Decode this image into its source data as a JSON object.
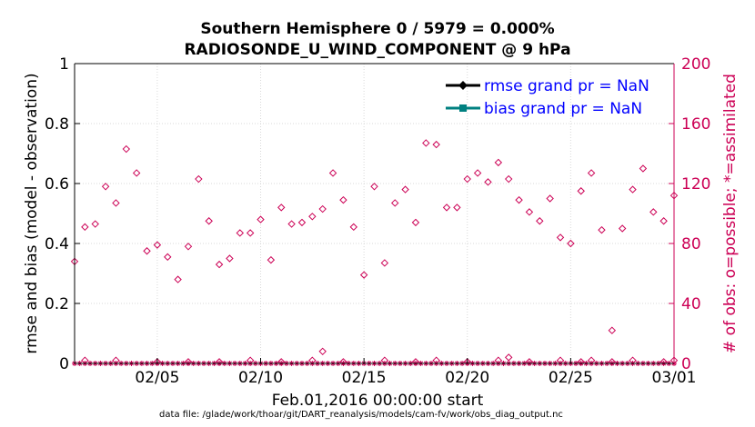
{
  "chart_data": {
    "type": "scatter",
    "title": "Southern Hemisphere 0 / 5979 = 0.000%",
    "subtitle": "RADIOSONDE_U_WIND_COMPONENT @ 9 hPa",
    "xlabel": "Feb.01,2016 00:00:00 start",
    "ylabel_left": "rmse and bias (model - observation)",
    "ylabel_right": "# of obs: o=possible; *=assimilated",
    "footer": "data file: /glade/work/thoar/git/DART_reanalysis/models/cam-fv/work/obs_diag_output.nc",
    "xlim": [
      1,
      30
    ],
    "ylim_left": [
      0,
      1
    ],
    "ylim_right": [
      0,
      200
    ],
    "x_tick_values": [
      5,
      10,
      15,
      20,
      25,
      30
    ],
    "x_tick_labels": [
      "02/05",
      "02/10",
      "02/15",
      "02/20",
      "02/25",
      "03/01"
    ],
    "y_left_ticks": [
      "0",
      "0.2",
      "0.4",
      "0.6",
      "0.8",
      "1"
    ],
    "y_right_ticks": [
      "0",
      "40",
      "80",
      "120",
      "160",
      "200"
    ],
    "grid": true,
    "legend_position": "top-right",
    "colors": {
      "rmse": "#000000",
      "bias": "#008080",
      "obs": "#cc0055",
      "legend_text": "#0000ff",
      "grid": "#d9d9d9"
    },
    "series": [
      {
        "name": "rmse grand pr = NaN",
        "marker": "diamond-filled",
        "color": "#000000",
        "values": []
      },
      {
        "name": "bias grand pr = NaN",
        "marker": "square-filled",
        "color": "#008080",
        "values": []
      }
    ],
    "obs_possible": {
      "x": [
        1,
        1.5,
        2,
        2.5,
        3,
        3.5,
        4,
        4.5,
        5,
        5.5,
        6,
        6.5,
        7,
        7.5,
        8,
        8.5,
        9,
        9.5,
        10,
        10.5,
        11,
        11.5,
        12,
        12.5,
        13,
        13.5,
        14,
        14.5,
        15,
        15.5,
        16,
        16.5,
        17,
        17.5,
        18,
        18.5,
        19,
        19.5,
        20,
        20.5,
        21,
        21.5,
        22,
        22.5,
        23,
        23.5,
        24,
        24.5,
        25,
        25.5,
        26,
        26.5,
        27,
        27.5,
        28,
        28.5,
        29,
        29.5,
        30
      ],
      "y": [
        68,
        91,
        93,
        118,
        107,
        143,
        127,
        75,
        79,
        71,
        56,
        78,
        123,
        95,
        66,
        70,
        87,
        87,
        96,
        69,
        104,
        93,
        94,
        98,
        103,
        127,
        109,
        91,
        59,
        118,
        67,
        107,
        116,
        94,
        147,
        146,
        104,
        104,
        123,
        127,
        121,
        134,
        123,
        109,
        101,
        95,
        110,
        84,
        80,
        115,
        127,
        89,
        22,
        90,
        116,
        130,
        101,
        95,
        112
      ]
    },
    "obs_assimilated_near_zero": {
      "x": [
        1.5,
        3,
        5,
        6.5,
        8,
        9.5,
        11,
        12.5,
        13,
        14,
        16,
        17.5,
        18.5,
        20,
        21.5,
        22,
        23,
        24.5,
        25.5,
        26,
        27,
        28,
        29.5,
        30
      ],
      "y": [
        2,
        2,
        1,
        1,
        1,
        2,
        1,
        2,
        8,
        1,
        2,
        1,
        2,
        1,
        2,
        4,
        1,
        2,
        1,
        2,
        1,
        2,
        1,
        2
      ]
    }
  }
}
